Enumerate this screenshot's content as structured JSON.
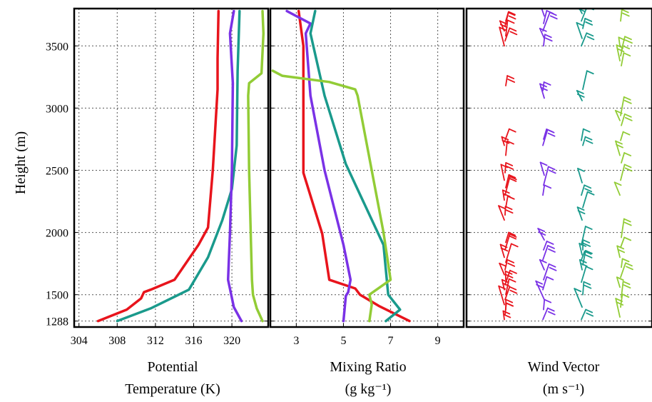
{
  "figure": {
    "y_axis_label": "Height (m)",
    "x_axis_labels": [
      [
        "Potential",
        "Temperature (K)"
      ],
      [
        "Mixing Ratio",
        "(g kg⁻¹)"
      ],
      [
        "Wind Vector",
        "(m s⁻¹)"
      ]
    ]
  },
  "colors": {
    "red": "#e8141c",
    "purple": "#7a32e6",
    "teal": "#1a9a8c",
    "lime": "#92cc36"
  },
  "chart_data": [
    {
      "type": "line",
      "panel": "potential-temperature",
      "xlabel": "Potential Temperature (K)",
      "ylabel": "Height (m)",
      "xlim": [
        303.5,
        323.8
      ],
      "ylim": [
        1240,
        3800
      ],
      "x_ticks": [
        304,
        308,
        312,
        316,
        320
      ],
      "y_ticks": [
        1288,
        1500,
        2000,
        2500,
        3000,
        3500
      ],
      "grid": true,
      "series": [
        {
          "color": "red",
          "points": [
            [
              306,
              1288
            ],
            [
              309,
              1380
            ],
            [
              310.5,
              1470
            ],
            [
              310.8,
              1520
            ],
            [
              311.5,
              1540
            ],
            [
              314,
              1620
            ],
            [
              316.5,
              1900
            ],
            [
              317.5,
              2040
            ],
            [
              318,
              2500
            ],
            [
              318.5,
              3150
            ],
            [
              318.5,
              3400
            ],
            [
              318.6,
              3780
            ]
          ]
        },
        {
          "color": "teal",
          "points": [
            [
              308,
              1288
            ],
            [
              311.5,
              1390
            ],
            [
              315.5,
              1540
            ],
            [
              317.5,
              1800
            ],
            [
              319,
              2100
            ],
            [
              320,
              2350
            ],
            [
              320.5,
              2700
            ],
            [
              320.6,
              3300
            ],
            [
              320.8,
              3780
            ]
          ]
        },
        {
          "color": "purple",
          "points": [
            [
              321,
              1288
            ],
            [
              320.2,
              1400
            ],
            [
              319.6,
              1620
            ],
            [
              319.8,
              2000
            ],
            [
              320,
              2500
            ],
            [
              320.1,
              3200
            ],
            [
              319.8,
              3600
            ],
            [
              320.2,
              3780
            ]
          ]
        },
        {
          "color": "lime",
          "points": [
            [
              323.2,
              1288
            ],
            [
              322.6,
              1390
            ],
            [
              322.2,
              1500
            ],
            [
              322.1,
              1620
            ],
            [
              322,
              1900
            ],
            [
              321.8,
              2500
            ],
            [
              321.7,
              3100
            ],
            [
              321.8,
              3200
            ],
            [
              323.1,
              3280
            ],
            [
              323.3,
              3600
            ],
            [
              323.2,
              3780
            ]
          ]
        }
      ]
    },
    {
      "type": "line",
      "panel": "mixing-ratio",
      "xlabel": "Mixing Ratio (g kg⁻¹)",
      "xlim": [
        1.9,
        10.1
      ],
      "ylim": [
        1240,
        3800
      ],
      "x_ticks": [
        3,
        5,
        7,
        9
      ],
      "grid": true,
      "series": [
        {
          "color": "red",
          "points": [
            [
              7.8,
              1288
            ],
            [
              6.5,
              1410
            ],
            [
              5.7,
              1500
            ],
            [
              5.5,
              1550
            ],
            [
              4.4,
              1620
            ],
            [
              4.1,
              1990
            ],
            [
              3.3,
              2480
            ],
            [
              3.3,
              3000
            ],
            [
              3.3,
              3500
            ],
            [
              3.1,
              3780
            ]
          ]
        },
        {
          "color": "purple",
          "points": [
            [
              5,
              1288
            ],
            [
              5.1,
              1490
            ],
            [
              5.2,
              1520
            ],
            [
              5.3,
              1620
            ],
            [
              5,
              1900
            ],
            [
              4.2,
              2500
            ],
            [
              3.6,
              3100
            ],
            [
              3.4,
              3600
            ],
            [
              3.6,
              3680
            ],
            [
              2.6,
              3780
            ]
          ]
        },
        {
          "color": "teal",
          "points": [
            [
              6.8,
              1288
            ],
            [
              7.4,
              1380
            ],
            [
              6.9,
              1500
            ],
            [
              6.7,
              1900
            ],
            [
              5.1,
              2550
            ],
            [
              4.2,
              3100
            ],
            [
              3.6,
              3600
            ],
            [
              3.8,
              3780
            ]
          ]
        },
        {
          "color": "lime",
          "points": [
            [
              6.1,
              1288
            ],
            [
              6.2,
              1420
            ],
            [
              6.1,
              1500
            ],
            [
              7,
              1620
            ],
            [
              6.7,
              2000
            ],
            [
              5.6,
              3100
            ],
            [
              5.5,
              3150
            ],
            [
              4.4,
              3210
            ],
            [
              2.4,
              3260
            ],
            [
              2,
              3300
            ]
          ]
        }
      ]
    },
    {
      "type": "scatter",
      "panel": "wind-vector",
      "xlabel": "Wind Vector (m s⁻¹)",
      "ylim": [
        1240,
        3800
      ],
      "x_ticks": [],
      "grid": true,
      "series": [
        {
          "color": "red",
          "levels": [
            1300,
            1340,
            1380,
            1420,
            1460,
            1500,
            1540,
            1580,
            1620,
            1660,
            1700,
            1760,
            1800,
            1860,
            1920,
            2100,
            2140,
            2200,
            2260,
            2300,
            2360,
            2420,
            2480,
            2620,
            2700,
            2740,
            3180,
            3500,
            3540,
            3580,
            3620,
            3660,
            3700
          ]
        },
        {
          "color": "purple",
          "levels": [
            1300,
            1380,
            1460,
            1540,
            1620,
            1700,
            1780,
            1860,
            1940,
            2300,
            2380,
            2460,
            2700,
            2750,
            3080,
            3140,
            3500,
            3560,
            3620,
            3680,
            3740
          ]
        },
        {
          "color": "teal",
          "levels": [
            1300,
            1400,
            1500,
            1600,
            1700,
            1740,
            1780,
            1820,
            1860,
            1900,
            2100,
            2200,
            2300,
            2400,
            2700,
            2740,
            3060,
            3150,
            3500,
            3560,
            3640,
            3700,
            3760
          ]
        },
        {
          "color": "lime",
          "levels": [
            1320,
            1400,
            1480,
            1560,
            1640,
            1720,
            1800,
            1880,
            1960,
            2300,
            2420,
            2560,
            2620,
            2740,
            2860,
            2900,
            2940,
            3340,
            3380,
            3420,
            3460,
            3500,
            3700
          ]
        }
      ]
    }
  ]
}
